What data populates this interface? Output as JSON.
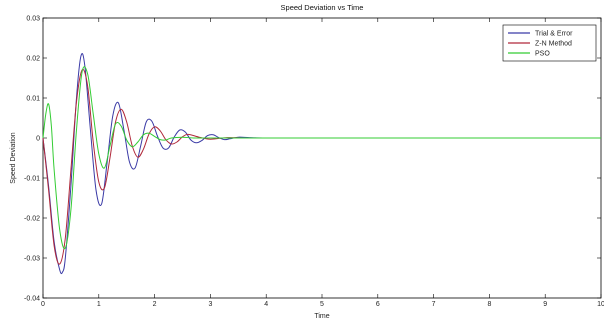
{
  "chart_data": {
    "type": "line",
    "title": "Speed Deviation vs Time",
    "xlabel": "Time",
    "ylabel": "Speed Deviation",
    "xlim": [
      0,
      10
    ],
    "ylim": [
      -0.04,
      0.03
    ],
    "xticks": [
      "0",
      "1",
      "2",
      "3",
      "4",
      "5",
      "6",
      "7",
      "8",
      "9",
      "10"
    ],
    "yticks": [
      "0.03",
      "0.02",
      "0.01",
      "0",
      "-0.01",
      "-0.02",
      "-0.03",
      "-0.04"
    ],
    "grid": false,
    "legend_position": "top-right",
    "series": [
      {
        "name": "Trial & Error",
        "color": "#3a3aa6",
        "x": [
          0,
          0.1,
          0.2,
          0.3,
          0.35,
          0.4,
          0.5,
          0.6,
          0.68,
          0.75,
          0.85,
          0.95,
          1.05,
          1.15,
          1.25,
          1.35,
          1.45,
          1.55,
          1.65,
          1.75,
          1.85,
          1.95,
          2.05,
          2.15,
          2.25,
          2.35,
          2.45,
          2.55,
          2.65,
          2.75,
          2.85,
          2.95,
          3.05,
          3.15,
          3.25,
          3.35,
          3.5,
          3.7,
          4.0,
          5.0,
          6.0,
          7.0,
          8.0,
          9.0,
          10.0
        ],
        "y": [
          0,
          -0.012,
          -0.026,
          -0.033,
          -0.0335,
          -0.03,
          -0.012,
          0.01,
          0.0205,
          0.018,
          0.002,
          -0.013,
          -0.0165,
          -0.006,
          0.0055,
          0.0088,
          0.002,
          -0.006,
          -0.0075,
          -0.002,
          0.004,
          0.0042,
          0.0005,
          -0.0025,
          -0.0025,
          0.0002,
          0.002,
          0.0015,
          -0.0005,
          -0.0012,
          -0.0006,
          0.0006,
          0.0008,
          0.0001,
          -0.0004,
          -0.0002,
          0.0002,
          0.0001,
          0,
          0,
          0,
          0,
          0,
          0,
          0
        ]
      },
      {
        "name": "Z-N Method",
        "color": "#b0283a",
        "x": [
          0,
          0.1,
          0.2,
          0.3,
          0.4,
          0.5,
          0.6,
          0.7,
          0.8,
          0.9,
          1.0,
          1.1,
          1.2,
          1.3,
          1.4,
          1.5,
          1.6,
          1.7,
          1.8,
          1.9,
          2.0,
          2.1,
          2.2,
          2.3,
          2.4,
          2.5,
          2.6,
          2.8,
          3.0,
          3.3,
          3.6,
          4.0,
          5.0,
          6.0,
          7.0,
          8.0,
          9.0,
          10.0
        ],
        "y": [
          0,
          -0.013,
          -0.027,
          -0.0315,
          -0.025,
          -0.008,
          0.009,
          0.017,
          0.013,
          -0.001,
          -0.011,
          -0.0125,
          -0.005,
          0.004,
          0.0072,
          0.004,
          -0.002,
          -0.0048,
          -0.0028,
          0.001,
          0.0028,
          0.0018,
          -0.0004,
          -0.0015,
          -0.001,
          0.0003,
          0.0009,
          0.0002,
          -0.0003,
          0.0001,
          0,
          0,
          0,
          0,
          0,
          0,
          0,
          0
        ]
      },
      {
        "name": "PSO",
        "color": "#33cc33",
        "x": [
          0,
          0.05,
          0.1,
          0.15,
          0.2,
          0.3,
          0.4,
          0.5,
          0.6,
          0.7,
          0.8,
          0.9,
          1.0,
          1.1,
          1.2,
          1.3,
          1.4,
          1.5,
          1.6,
          1.7,
          1.8,
          1.9,
          2.0,
          2.1,
          2.2,
          2.3,
          2.5,
          2.7,
          3.0,
          3.5,
          4.0,
          5.0,
          6.0,
          7.0,
          8.0,
          9.0,
          10.0
        ],
        "y": [
          0,
          0.006,
          0.0085,
          0.003,
          -0.008,
          -0.023,
          -0.0275,
          -0.018,
          0.002,
          0.0165,
          0.016,
          0.006,
          -0.004,
          -0.0075,
          -0.002,
          0.0035,
          0.003,
          -0.0005,
          -0.0022,
          -0.001,
          0.0008,
          0.0012,
          0.0004,
          -0.0004,
          -0.0005,
          0,
          0.0002,
          0,
          0,
          0,
          0,
          0,
          0,
          0,
          0,
          0,
          0
        ]
      }
    ]
  }
}
